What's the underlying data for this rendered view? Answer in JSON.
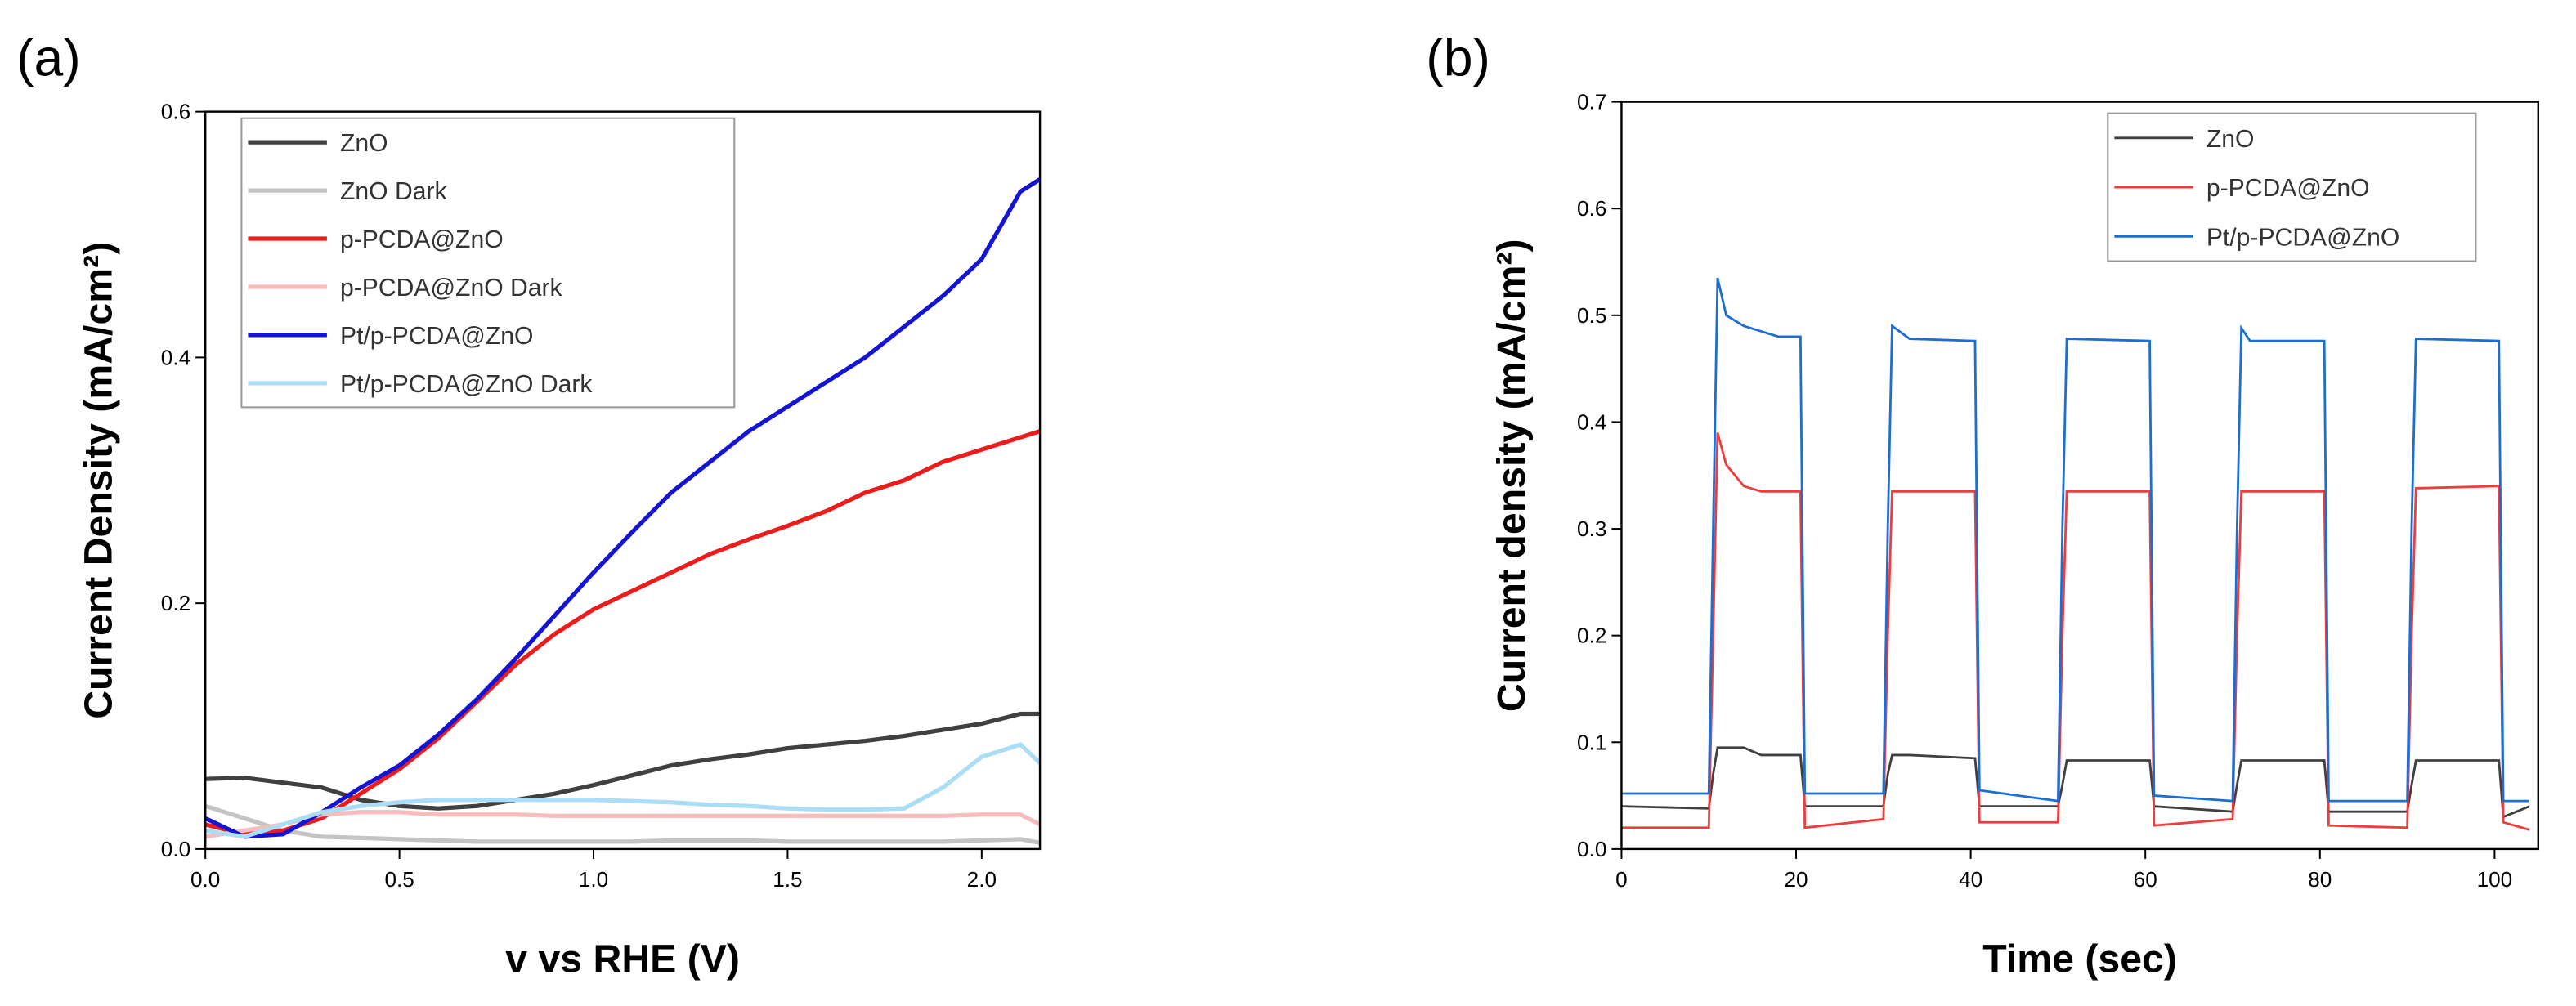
{
  "chart_data": [
    {
      "type": "line",
      "panel": "(a)",
      "xlabel": "v vs RHE (V)",
      "ylabel": "Current Density (mA/cm²)",
      "x": [
        0,
        0.1,
        0.2,
        0.3,
        0.4,
        0.5,
        0.6,
        0.7,
        0.8,
        0.9,
        1.0,
        1.1,
        1.2,
        1.3,
        1.4,
        1.5,
        1.6,
        1.7,
        1.8,
        1.9,
        2.0,
        2.1,
        2.15
      ],
      "xlim": [
        0,
        2.15
      ],
      "ylim": [
        0,
        0.6
      ],
      "xticks": [
        {
          "value": 0,
          "label": "0.0"
        },
        0.5,
        {
          "value": 1,
          "label": "1.0"
        },
        1.5,
        {
          "value": 2,
          "label": "2.0"
        }
      ],
      "yticks": [
        {
          "value": 0,
          "label": "0.0"
        },
        0.2,
        0.4,
        {
          "value": 0.6,
          "label": "0.6"
        }
      ],
      "legend": "upper left",
      "series": [
        {
          "name": "ZnO",
          "color": "#404040",
          "values": [
            0.057,
            0.058,
            0.054,
            0.05,
            0.04,
            0.035,
            0.033,
            0.035,
            0.04,
            0.045,
            0.052,
            0.06,
            0.068,
            0.073,
            0.077,
            0.082,
            0.085,
            0.088,
            0.092,
            0.097,
            0.102,
            0.11,
            0.11
          ]
        },
        {
          "name": "ZnO Dark",
          "color": "#c4c4c4",
          "values": [
            0.035,
            0.025,
            0.015,
            0.01,
            0.009,
            0.008,
            0.007,
            0.006,
            0.006,
            0.006,
            0.006,
            0.006,
            0.007,
            0.007,
            0.007,
            0.006,
            0.006,
            0.006,
            0.006,
            0.006,
            0.007,
            0.008,
            0.005
          ]
        },
        {
          "name": "p-PCDA@ZnO",
          "color": "#ec1c1c",
          "values": [
            0.02,
            0.012,
            0.015,
            0.025,
            0.045,
            0.065,
            0.09,
            0.12,
            0.15,
            0.175,
            0.195,
            0.21,
            0.225,
            0.24,
            0.252,
            0.263,
            0.275,
            0.29,
            0.3,
            0.315,
            0.325,
            0.335,
            0.34
          ]
        },
        {
          "name": "p-PCDA@ZnO Dark",
          "color": "#f7bcbc",
          "values": [
            0.01,
            0.015,
            0.02,
            0.028,
            0.03,
            0.03,
            0.028,
            0.028,
            0.028,
            0.027,
            0.027,
            0.027,
            0.027,
            0.027,
            0.027,
            0.027,
            0.027,
            0.027,
            0.027,
            0.027,
            0.028,
            0.028,
            0.02
          ]
        },
        {
          "name": "Pt/p-PCDA@ZnO",
          "color": "#1414d2",
          "values": [
            0.025,
            0.01,
            0.012,
            0.03,
            0.05,
            0.068,
            0.093,
            0.122,
            0.155,
            0.19,
            0.225,
            0.258,
            0.29,
            0.315,
            0.34,
            0.36,
            0.38,
            0.4,
            0.425,
            0.45,
            0.48,
            0.535,
            0.545
          ]
        },
        {
          "name": "Pt/p-PCDA@ZnO Dark",
          "color": "#abdef5",
          "values": [
            0.015,
            0.01,
            0.02,
            0.03,
            0.035,
            0.038,
            0.04,
            0.04,
            0.04,
            0.04,
            0.04,
            0.039,
            0.038,
            0.036,
            0.035,
            0.033,
            0.032,
            0.032,
            0.033,
            0.05,
            0.075,
            0.085,
            0.07
          ]
        }
      ]
    },
    {
      "type": "line",
      "panel": "(b)",
      "xlabel": "Time (sec)",
      "ylabel": "Current density (mA/cm²)",
      "x": [
        0,
        10,
        10.5,
        11,
        12,
        14,
        16,
        18,
        20.5,
        21,
        30,
        30.5,
        31,
        33,
        40.5,
        41,
        50,
        50.5,
        51,
        60.5,
        61,
        70,
        70.5,
        71,
        72,
        80.5,
        81,
        90,
        90.5,
        91,
        100.5,
        101,
        104
      ],
      "xlim": [
        0,
        105
      ],
      "ylim": [
        0,
        0.7
      ],
      "xticks": [
        0,
        20,
        40,
        60,
        80,
        100
      ],
      "yticks": [
        {
          "value": 0,
          "label": "0.0"
        },
        0.1,
        0.2,
        0.3,
        0.4,
        0.5,
        0.6,
        0.7
      ],
      "legend": "upper right",
      "series": [
        {
          "name": "ZnO",
          "color": "#404040",
          "values": [
            0.04,
            0.038,
            0.07,
            0.095,
            0.095,
            0.095,
            0.088,
            0.088,
            0.088,
            0.04,
            0.04,
            0.07,
            0.088,
            0.088,
            0.085,
            0.04,
            0.04,
            0.06,
            0.083,
            0.083,
            0.04,
            0.035,
            0.06,
            0.083,
            0.083,
            0.083,
            0.035,
            0.035,
            0.06,
            0.083,
            0.083,
            0.03,
            0.04
          ]
        },
        {
          "name": "p-PCDA@ZnO",
          "color": "#f03c3c",
          "values": [
            0.02,
            0.02,
            0.2,
            0.39,
            0.36,
            0.34,
            0.335,
            0.335,
            0.335,
            0.02,
            0.028,
            0.2,
            0.335,
            0.335,
            0.335,
            0.025,
            0.025,
            0.2,
            0.335,
            0.335,
            0.022,
            0.028,
            0.2,
            0.335,
            0.335,
            0.335,
            0.022,
            0.02,
            0.2,
            0.338,
            0.34,
            0.025,
            0.018
          ]
        },
        {
          "name": "Pt/p-PCDA@ZnO",
          "color": "#1c6fd1",
          "values": [
            0.052,
            0.052,
            0.3,
            0.535,
            0.5,
            0.49,
            0.485,
            0.48,
            0.48,
            0.052,
            0.052,
            0.3,
            0.49,
            0.478,
            0.476,
            0.055,
            0.045,
            0.3,
            0.478,
            0.476,
            0.05,
            0.045,
            0.3,
            0.488,
            0.476,
            0.476,
            0.045,
            0.045,
            0.3,
            0.478,
            0.476,
            0.045,
            0.045
          ]
        }
      ]
    }
  ]
}
